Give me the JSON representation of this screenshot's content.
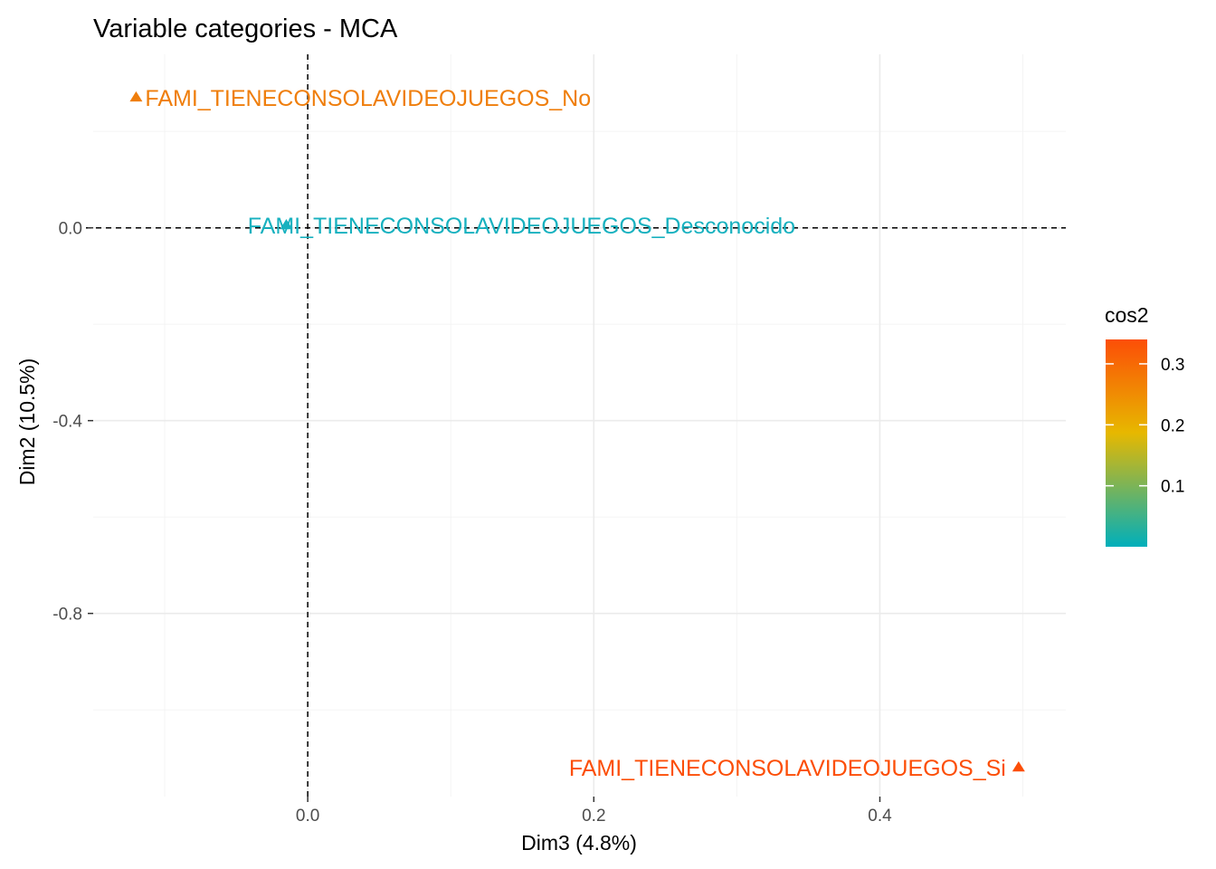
{
  "chart_data": {
    "type": "scatter",
    "title": "Variable categories - MCA",
    "xlabel": "Dim3 (4.8%)",
    "ylabel": "Dim2 (10.5%)",
    "xlim": [
      -0.15,
      0.53
    ],
    "ylim": [
      -1.18,
      0.36
    ],
    "x_ticks": [
      0.0,
      0.2,
      0.4
    ],
    "x_tick_labels": [
      "0.0",
      "0.2",
      "0.4"
    ],
    "y_ticks": [
      0.0,
      -0.4,
      -0.8
    ],
    "y_tick_labels": [
      "0.0",
      "-0.4",
      "-0.8"
    ],
    "grid": true,
    "points": [
      {
        "label": "FAMI_TIENECONSOLAVIDEOJUEGOS_No",
        "x": -0.12,
        "y": 0.27,
        "cos2": 0.25,
        "color": "#EF7E0C"
      },
      {
        "label": "FAMI_TIENECONSOLAVIDEOJUEGOS_Desconocido",
        "x": -0.015,
        "y": 0.005,
        "cos2": 0.0,
        "color": "#17B1BF"
      },
      {
        "label": "FAMI_TIENECONSOLAVIDEOJUEGOS_Si",
        "x": 0.497,
        "y": -1.12,
        "cos2": 0.33,
        "color": "#FC4E07"
      }
    ],
    "legend": {
      "title": "cos2",
      "placement": "right",
      "tick_labels": [
        "0.1",
        "0.2",
        "0.3"
      ],
      "ticks": [
        0.1,
        0.2,
        0.3
      ],
      "range": [
        0.0,
        0.34
      ],
      "gradient_colors": [
        "#00AFBB",
        "#E7B800",
        "#FC4E07"
      ]
    }
  }
}
